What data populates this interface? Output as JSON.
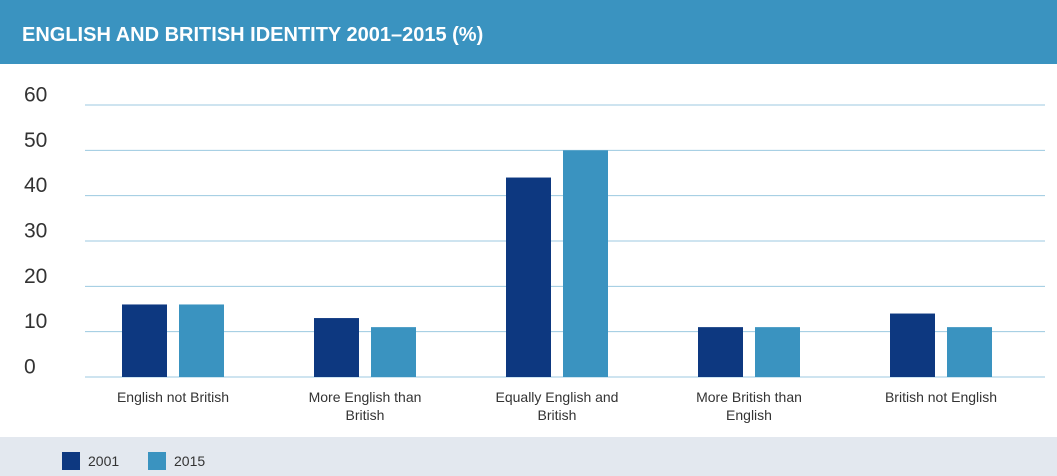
{
  "chart_data": {
    "type": "bar",
    "title": "ENGLISH AND BRITISH IDENTITY 2001–2015 (%)",
    "categories": [
      "English not British",
      "More English than British",
      "Equally English and British",
      "More British than English",
      "British not English"
    ],
    "series": [
      {
        "name": "2001",
        "color": "#0d3880",
        "values": [
          16,
          13,
          44,
          11,
          14
        ]
      },
      {
        "name": "2015",
        "color": "#3a93c0",
        "values": [
          16,
          11,
          50,
          11,
          11
        ]
      }
    ],
    "ylim": [
      0,
      60
    ],
    "yticks": [
      0,
      10,
      20,
      30,
      40,
      50,
      60
    ],
    "grid": true
  }
}
